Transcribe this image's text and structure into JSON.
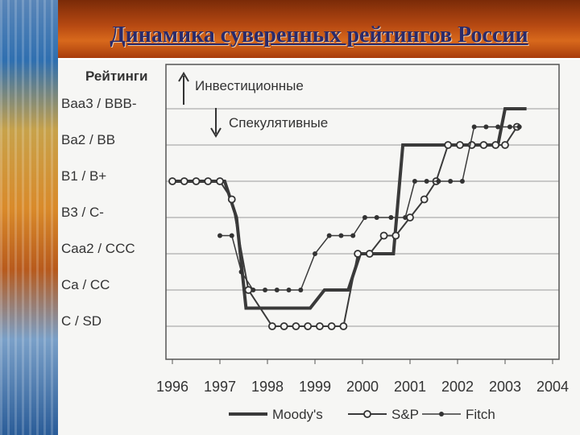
{
  "slide": {
    "title": "Динамика суверенных рейтингов России"
  },
  "chart_data": {
    "type": "line",
    "y_axis_title": "Рейтинги",
    "y_categories": [
      "C / SD",
      "Ca / CC",
      "Caa2 / CCC",
      "B3 / C-",
      "B1 / B+",
      "Ba2 / BB",
      "Baa3 / BBB-"
    ],
    "x_ticks": [
      "1996",
      "1997",
      "1998",
      "1999",
      "2000",
      "2001",
      "2002",
      "2003",
      "2004"
    ],
    "xlim": [
      1996,
      2004
    ],
    "grid": "horizontal",
    "legend_position": "bottom",
    "annotations": [
      {
        "text": "Инвестиционные",
        "arrow": "up"
      },
      {
        "text": "Спекулятивные",
        "arrow": "down"
      }
    ],
    "series": [
      {
        "name": "Moody's",
        "marker": "none",
        "x": [
          1996.0,
          1997.1,
          1997.35,
          1997.55,
          1998.5,
          1998.9,
          1999.2,
          1999.7,
          1999.95,
          2000.2,
          2000.65,
          2000.85,
          2002.15,
          2002.85,
          2003.0,
          2003.45
        ],
        "y": [
          5.0,
          5.0,
          4.0,
          1.5,
          1.5,
          1.5,
          2.0,
          2.0,
          3.0,
          3.0,
          3.0,
          6.0,
          6.0,
          6.0,
          7.0,
          7.0
        ]
      },
      {
        "name": "S&P",
        "marker": "circle",
        "x": [
          1996.0,
          1996.25,
          1996.5,
          1996.75,
          1997.0,
          1997.25,
          1997.6,
          1998.1,
          1998.35,
          1998.6,
          1998.85,
          1999.1,
          1999.35,
          1999.6,
          1999.9,
          2000.15,
          2000.45,
          2000.7,
          2001.0,
          2001.3,
          2001.55,
          2001.8,
          2002.05,
          2002.3,
          2002.55,
          2002.8,
          2003.0,
          2003.25
        ],
        "y": [
          5.0,
          5.0,
          5.0,
          5.0,
          5.0,
          4.5,
          2.0,
          1.0,
          1.0,
          1.0,
          1.0,
          1.0,
          1.0,
          1.0,
          3.0,
          3.0,
          3.5,
          3.5,
          4.0,
          4.5,
          5.0,
          6.0,
          6.0,
          6.0,
          6.0,
          6.0,
          6.0,
          6.5
        ]
      },
      {
        "name": "Fitch",
        "marker": "dot",
        "x": [
          1997.0,
          1997.25,
          1997.45,
          1997.7,
          1997.95,
          1998.2,
          1998.45,
          1998.7,
          1999.0,
          1999.3,
          1999.55,
          1999.8,
          2000.05,
          2000.3,
          2000.6,
          2000.9,
          2001.1,
          2001.35,
          2001.6,
          2001.85,
          2002.1,
          2002.35,
          2002.6,
          2002.85,
          2003.1,
          2003.3
        ],
        "y": [
          3.5,
          3.5,
          2.5,
          2.0,
          2.0,
          2.0,
          2.0,
          2.0,
          3.0,
          3.5,
          3.5,
          3.5,
          4.0,
          4.0,
          4.0,
          4.0,
          5.0,
          5.0,
          5.0,
          5.0,
          5.0,
          6.5,
          6.5,
          6.5,
          6.5,
          6.5
        ]
      }
    ]
  }
}
